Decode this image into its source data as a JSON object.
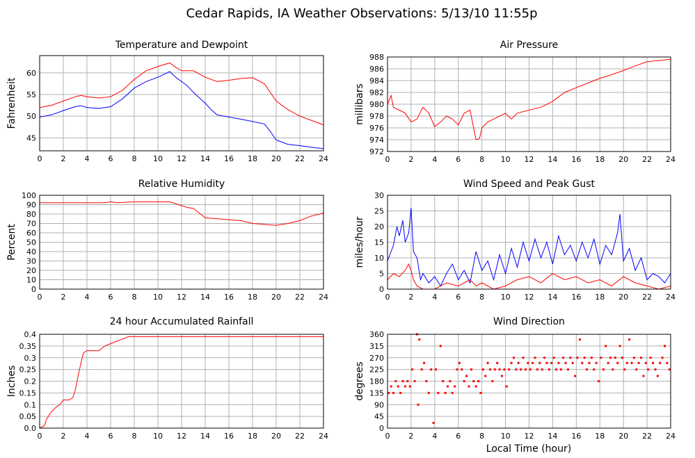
{
  "title": "Cedar Rapids, IA Weather Observations: 5/13/10 11:55p",
  "xlabel_common": "Local Time (hour)",
  "colors": {
    "temperature": "#ff0000",
    "dewpoint": "#0000ff",
    "grid": "#b0b0b0",
    "frame": "#000000"
  },
  "chart_data": [
    {
      "id": "temp",
      "type": "line",
      "title": "Temperature and Dewpoint",
      "ylabel": "Fahrenheit",
      "xlim": [
        0,
        24
      ],
      "ylim": [
        42,
        64
      ],
      "xticks": [
        0,
        2,
        4,
        6,
        8,
        10,
        12,
        14,
        16,
        18,
        20,
        22,
        24
      ],
      "yticks": [
        45,
        50,
        55,
        60
      ],
      "grid": true,
      "series": [
        {
          "color": "#ff0000",
          "x": [
            0,
            1,
            2,
            3,
            3.5,
            4,
            5,
            6,
            7,
            8,
            9,
            10,
            11,
            11.5,
            12,
            13,
            14,
            15,
            16,
            17,
            18,
            19,
            20,
            21,
            22,
            23,
            24
          ],
          "y": [
            52,
            52.5,
            53.5,
            54.5,
            54.8,
            54.5,
            54.2,
            54.5,
            56,
            58.5,
            60.5,
            61.5,
            62.3,
            61.3,
            60.5,
            60.5,
            59,
            58,
            58.3,
            58.7,
            58.9,
            57.5,
            53.5,
            51.5,
            50,
            49,
            48
          ]
        },
        {
          "color": "#0000ff",
          "x": [
            0,
            1,
            2,
            3,
            3.5,
            4,
            5,
            6,
            7,
            8,
            9,
            10,
            11,
            11.5,
            12,
            12.5,
            13,
            14,
            14.5,
            15,
            16,
            17,
            18,
            19,
            19.5,
            20,
            21,
            22,
            23,
            24
          ],
          "y": [
            49.8,
            50.3,
            51.3,
            52.2,
            52.4,
            52,
            51.8,
            52.2,
            54,
            56.5,
            58,
            59,
            60.3,
            59,
            58,
            57,
            55.5,
            53,
            51.5,
            50.3,
            49.8,
            49.3,
            48.8,
            48.2,
            46.5,
            44.5,
            43.5,
            43.2,
            42.8,
            42.5
          ]
        }
      ]
    },
    {
      "id": "pres",
      "type": "line",
      "title": "Air Pressure",
      "ylabel": "millibars",
      "xlim": [
        0,
        24
      ],
      "ylim": [
        972,
        988
      ],
      "xticks": [
        0,
        2,
        4,
        6,
        8,
        10,
        12,
        14,
        16,
        18,
        20,
        22,
        24
      ],
      "yticks": [
        972,
        974,
        976,
        978,
        980,
        982,
        984,
        986,
        988
      ],
      "grid": true,
      "series": [
        {
          "color": "#ff0000",
          "x": [
            0,
            0.3,
            0.5,
            1,
            1.5,
            2,
            2.5,
            3,
            3.5,
            4,
            4.5,
            5,
            5.5,
            6,
            6.5,
            7,
            7.5,
            7.8,
            8,
            8.5,
            9,
            10,
            10.5,
            11,
            12,
            13,
            14,
            15,
            16,
            17,
            18,
            19,
            20,
            21,
            22,
            23,
            24
          ],
          "y": [
            980,
            981.5,
            979.5,
            979,
            978.5,
            977,
            977.5,
            979.5,
            978.5,
            976.2,
            977,
            978,
            977.5,
            976.5,
            978.5,
            979,
            974,
            974.2,
            976,
            977,
            977.5,
            978.5,
            977.5,
            978.5,
            979,
            979.5,
            980.5,
            982,
            982.8,
            983.6,
            984.4,
            985,
            985.7,
            986.5,
            987.2,
            987.4,
            987.6
          ]
        }
      ]
    },
    {
      "id": "rh",
      "type": "line",
      "title": "Relative Humidity",
      "ylabel": "Percent",
      "xlim": [
        0,
        24
      ],
      "ylim": [
        0,
        100
      ],
      "xticks": [
        0,
        2,
        4,
        6,
        8,
        10,
        12,
        14,
        16,
        18,
        20,
        22,
        24
      ],
      "yticks": [
        0,
        10,
        20,
        30,
        40,
        50,
        60,
        70,
        80,
        90,
        100
      ],
      "grid": true,
      "series": [
        {
          "color": "#ff0000",
          "x": [
            0,
            2,
            4,
            5.5,
            6,
            6.5,
            8,
            10,
            11,
            12,
            12.5,
            13,
            13.5,
            14,
            15,
            16,
            17,
            18,
            19,
            20,
            21,
            22,
            23,
            24
          ],
          "y": [
            92,
            92,
            92,
            92,
            93,
            92,
            93,
            93,
            93,
            89,
            87,
            86,
            81,
            76,
            75,
            74,
            73,
            70,
            69,
            68,
            70,
            73,
            78,
            81
          ]
        }
      ]
    },
    {
      "id": "wind",
      "type": "line",
      "title": "Wind Speed and Peak Gust",
      "ylabel": "miles/hour",
      "xlim": [
        0,
        24
      ],
      "ylim": [
        0,
        30
      ],
      "xticks": [
        0,
        2,
        4,
        6,
        8,
        10,
        12,
        14,
        16,
        18,
        20,
        22,
        24
      ],
      "yticks": [
        0,
        5,
        10,
        15,
        20,
        25,
        30
      ],
      "grid": true,
      "series": [
        {
          "color": "#0000ff",
          "x": [
            0,
            0.5,
            0.8,
            1,
            1.3,
            1.5,
            1.8,
            2,
            2.2,
            2.5,
            2.8,
            3,
            3.5,
            4,
            4.5,
            5,
            5.5,
            6,
            6.5,
            7,
            7.5,
            8,
            8.5,
            9,
            9.5,
            10,
            10.5,
            11,
            11.5,
            12,
            12.5,
            13,
            13.5,
            14,
            14.5,
            15,
            15.5,
            16,
            16.5,
            17,
            17.5,
            18,
            18.5,
            19,
            19.5,
            19.7,
            20,
            20.5,
            21,
            21.5,
            22,
            22.5,
            23,
            23.5,
            24
          ],
          "y": [
            9,
            14,
            20,
            17,
            22,
            15,
            18,
            26,
            12,
            10,
            3,
            5,
            2,
            4,
            1,
            5,
            8,
            3,
            6,
            2,
            12,
            6,
            9,
            3,
            11,
            5,
            13,
            7,
            15,
            9,
            16,
            10,
            15,
            8,
            17,
            11,
            14,
            9,
            15,
            10,
            16,
            8,
            14,
            11,
            18,
            24,
            9,
            13,
            6,
            10,
            3,
            5,
            4,
            2,
            5
          ]
        },
        {
          "color": "#ff0000",
          "x": [
            0,
            0.5,
            1,
            1.5,
            1.8,
            2,
            2.2,
            2.5,
            3,
            4,
            5,
            6,
            7,
            7.5,
            8,
            9,
            10,
            11,
            12,
            13,
            14,
            15,
            16,
            17,
            18,
            19,
            20,
            21,
            22,
            23,
            24
          ],
          "y": [
            3,
            5,
            4,
            6,
            8,
            6,
            3,
            1,
            0,
            0,
            2,
            1,
            3,
            1,
            2,
            0,
            1,
            3,
            4,
            2,
            5,
            3,
            4,
            2,
            3,
            1,
            4,
            2,
            1,
            0,
            1
          ]
        }
      ]
    },
    {
      "id": "rain",
      "type": "line",
      "title": "24 hour Accumulated Rainfall",
      "ylabel": "Inches",
      "xlim": [
        0,
        24
      ],
      "ylim": [
        0,
        0.4
      ],
      "xticks": [
        0,
        2,
        4,
        6,
        8,
        10,
        12,
        14,
        16,
        18,
        20,
        22,
        24
      ],
      "yticks": [
        0.0,
        0.05,
        0.1,
        0.15,
        0.2,
        0.25,
        0.3,
        0.35,
        0.4
      ],
      "yticklabels": [
        "0.0",
        "0.05",
        "0.1",
        "0.15",
        "0.2",
        "0.25",
        "0.3",
        "0.35",
        "0.4"
      ],
      "grid": true,
      "series": [
        {
          "color": "#ff0000",
          "x": [
            0,
            0.4,
            0.6,
            1,
            1.4,
            1.7,
            2,
            2.5,
            2.8,
            3,
            3.2,
            3.5,
            3.7,
            4,
            5,
            5.5,
            6,
            6.5,
            7,
            7.5,
            8,
            10,
            12,
            14,
            16,
            18,
            20,
            22,
            24
          ],
          "y": [
            0,
            0.01,
            0.04,
            0.07,
            0.09,
            0.1,
            0.12,
            0.12,
            0.13,
            0.16,
            0.21,
            0.28,
            0.32,
            0.33,
            0.33,
            0.35,
            0.36,
            0.37,
            0.38,
            0.39,
            0.39,
            0.39,
            0.39,
            0.39,
            0.39,
            0.39,
            0.39,
            0.39,
            0.39
          ]
        }
      ]
    },
    {
      "id": "dir",
      "type": "scatter",
      "title": "Wind Direction",
      "ylabel": "degrees",
      "xlabel": "Local Time (hour)",
      "xlim": [
        0,
        24
      ],
      "ylim": [
        0,
        360
      ],
      "xticks": [
        0,
        2,
        4,
        6,
        8,
        10,
        12,
        14,
        16,
        18,
        20,
        22,
        24
      ],
      "yticks": [
        0,
        45,
        90,
        135,
        180,
        225,
        270,
        315,
        360
      ],
      "grid": true,
      "series": [
        {
          "color": "#ff0000",
          "x": [
            0.1,
            0.3,
            0.5,
            0.7,
            0.9,
            1.1,
            1.3,
            1.5,
            1.7,
            1.9,
            2.1,
            2.3,
            2.5,
            2.6,
            2.7,
            2.9,
            3.1,
            3.3,
            3.5,
            3.7,
            3.9,
            4.1,
            4.3,
            4.5,
            4.7,
            4.9,
            5.1,
            5.3,
            5.5,
            5.7,
            5.9,
            6.1,
            6.3,
            6.5,
            6.7,
            6.9,
            7.1,
            7.3,
            7.5,
            7.7,
            7.9,
            8.1,
            8.3,
            8.5,
            8.7,
            8.9,
            9.1,
            9.3,
            9.5,
            9.7,
            9.9,
            10.1,
            10.3,
            10.5,
            10.7,
            10.9,
            11.1,
            11.3,
            11.5,
            11.7,
            11.9,
            12.1,
            12.3,
            12.5,
            12.7,
            12.9,
            13.1,
            13.3,
            13.5,
            13.7,
            13.9,
            14.1,
            14.3,
            14.5,
            14.7,
            14.9,
            15.1,
            15.3,
            15.5,
            15.7,
            15.9,
            16.1,
            16.3,
            16.5,
            16.7,
            16.9,
            17.1,
            17.3,
            17.5,
            17.7,
            17.9,
            18.1,
            18.3,
            18.5,
            18.7,
            18.9,
            19.1,
            19.3,
            19.5,
            19.7,
            19.9,
            20.1,
            20.3,
            20.5,
            20.7,
            20.9,
            21.1,
            21.3,
            21.5,
            21.7,
            21.9,
            22.1,
            22.3,
            22.5,
            22.7,
            22.9,
            23.1,
            23.3,
            23.5,
            23.7,
            23.9
          ],
          "y": [
            135,
            160,
            135,
            180,
            160,
            135,
            180,
            160,
            180,
            160,
            225,
            180,
            360,
            90,
            340,
            225,
            250,
            180,
            135,
            225,
            20,
            225,
            135,
            315,
            180,
            135,
            160,
            180,
            135,
            160,
            225,
            250,
            225,
            180,
            200,
            160,
            225,
            180,
            160,
            180,
            135,
            225,
            200,
            250,
            225,
            180,
            225,
            250,
            225,
            200,
            225,
            160,
            225,
            250,
            270,
            225,
            250,
            225,
            270,
            225,
            250,
            225,
            250,
            270,
            225,
            250,
            225,
            270,
            250,
            225,
            250,
            270,
            225,
            250,
            225,
            270,
            250,
            225,
            270,
            250,
            200,
            270,
            340,
            250,
            270,
            225,
            250,
            270,
            225,
            250,
            180,
            270,
            225,
            315,
            250,
            270,
            225,
            270,
            250,
            315,
            270,
            225,
            250,
            340,
            250,
            270,
            225,
            250,
            270,
            200,
            250,
            225,
            270,
            250,
            225,
            200,
            250,
            270,
            315,
            250,
            225
          ]
        }
      ]
    }
  ]
}
